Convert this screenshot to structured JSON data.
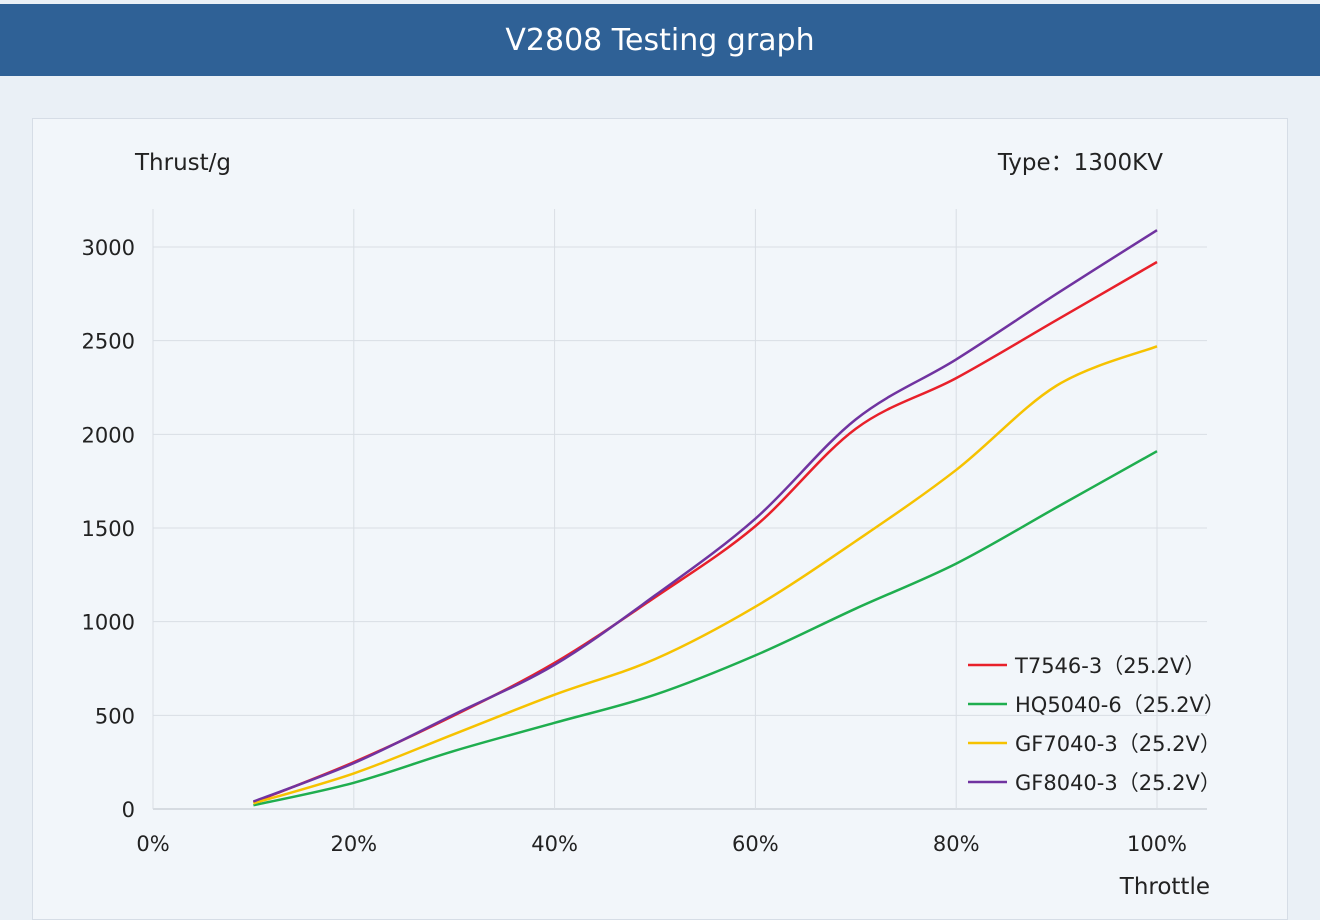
{
  "header": {
    "title": "V2808 Testing graph"
  },
  "chart_data": {
    "type": "line",
    "ylabel": "Thrust/g",
    "xlabel": "Throttle",
    "annotation": "Type：1300KV",
    "xlim": [
      0,
      100
    ],
    "ylim": [
      0,
      3000
    ],
    "x_ticks": [
      "0%",
      "20%",
      "40%",
      "60%",
      "80%",
      "100%"
    ],
    "y_ticks": [
      "0",
      "500",
      "1000",
      "1500",
      "2000",
      "2500",
      "3000"
    ],
    "grid": true,
    "legend_position": "bottom-right",
    "x": [
      10,
      20,
      30,
      40,
      50,
      60,
      70,
      80,
      90,
      100
    ],
    "series": [
      {
        "name": "T7546-3（25.2V）",
        "color": "#e8202a",
        "values": [
          35,
          250,
          500,
          780,
          1130,
          1510,
          2030,
          2300,
          2610,
          2920
        ]
      },
      {
        "name": "HQ5040-6（25.2V）",
        "color": "#1fae4f",
        "values": [
          20,
          140,
          310,
          460,
          610,
          820,
          1070,
          1310,
          1610,
          1910
        ]
      },
      {
        "name": "GF7040-3（25.2V）",
        "color": "#f6c200",
        "values": [
          30,
          190,
          400,
          610,
          800,
          1080,
          1430,
          1810,
          2260,
          2470
        ]
      },
      {
        "name": "GF8040-3（25.2V）",
        "color": "#7033a0",
        "values": [
          40,
          245,
          505,
          770,
          1140,
          1550,
          2080,
          2400,
          2750,
          3090
        ]
      }
    ]
  }
}
